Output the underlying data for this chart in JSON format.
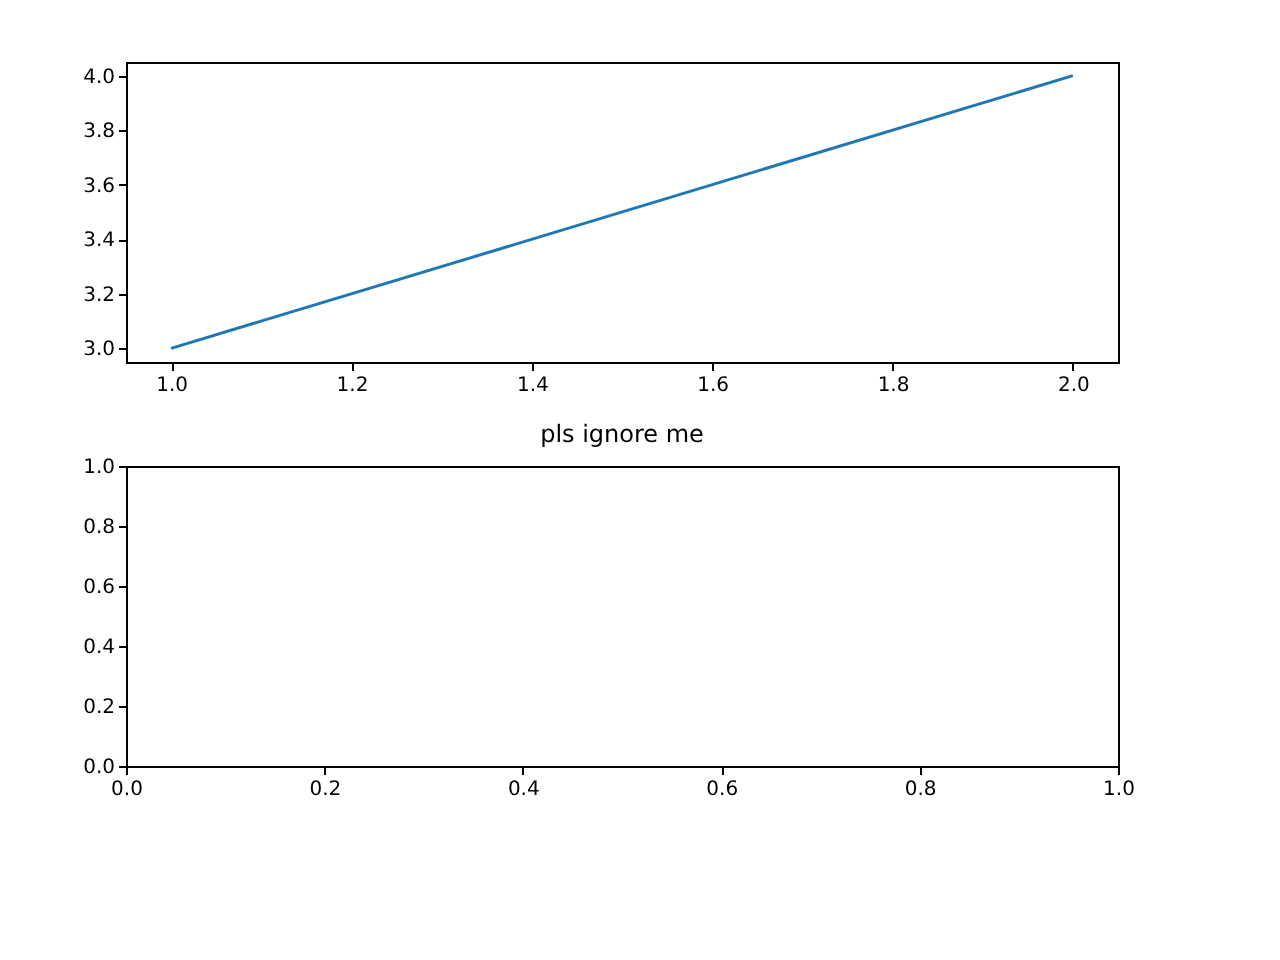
{
  "chart_data": [
    {
      "type": "line",
      "x": [
        1,
        2
      ],
      "values": [
        3,
        4
      ],
      "color": "#1f77b4",
      "xlim": [
        0.95,
        2.05
      ],
      "ylim": [
        2.95,
        4.05
      ],
      "xticks": [
        {
          "value": 1,
          "label": "1.0"
        },
        1.2,
        1.4,
        1.6,
        1.8,
        {
          "value": 2,
          "label": "2.0"
        }
      ],
      "yticks": [
        {
          "value": 3,
          "label": "3.0"
        },
        3.2,
        3.4,
        3.6,
        3.8,
        {
          "value": 4,
          "label": "4.0"
        }
      ],
      "grid": false,
      "legend": false
    },
    {
      "type": "line",
      "title": "pls ignore me",
      "xlim": [
        0,
        1
      ],
      "ylim": [
        0,
        1
      ],
      "xticks": [
        {
          "value": 0,
          "label": "0.0"
        },
        0.2,
        0.4,
        0.6,
        0.8,
        {
          "value": 1,
          "label": "1.0"
        }
      ],
      "yticks": [
        {
          "value": 0,
          "label": "0.0"
        },
        0.2,
        0.4,
        0.6,
        0.8,
        {
          "value": 1,
          "label": "1.0"
        }
      ],
      "grid": false,
      "legend": false
    }
  ]
}
